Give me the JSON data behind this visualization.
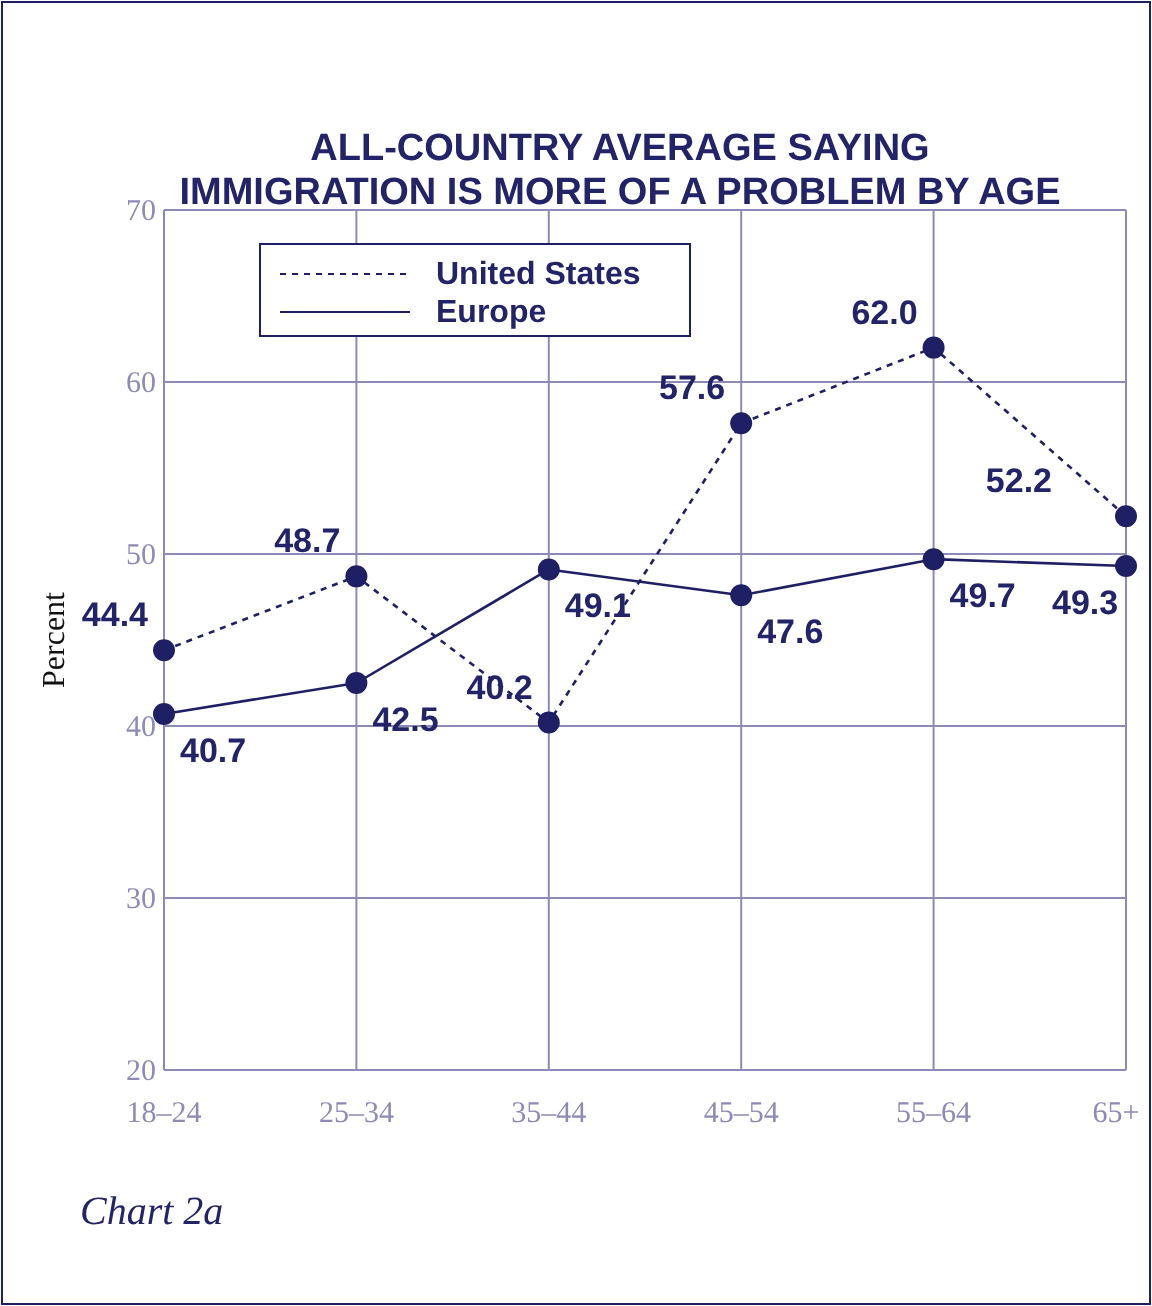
{
  "chart_data": {
    "type": "line",
    "title": "ALL-COUNTRY AVERAGE SAYING\nIMMIGRATION IS MORE OF A PROBLEM BY AGE",
    "ylabel": "Percent",
    "categories": [
      "18–24",
      "25–34",
      "35–44",
      "45–54",
      "55–64",
      "65+"
    ],
    "series": [
      {
        "name": "United States",
        "color": "#1f1f66",
        "line_style": "dashed",
        "values": [
          44.4,
          48.7,
          40.2,
          57.6,
          62.0,
          52.2
        ],
        "value_labels": [
          "44.4",
          "48.7",
          "40.2",
          "57.6",
          "62.0",
          "52.2"
        ]
      },
      {
        "name": "Europe",
        "color": "#1f1f66",
        "line_style": "solid",
        "values": [
          40.7,
          42.5,
          49.1,
          47.6,
          49.7,
          49.3
        ],
        "value_labels": [
          "40.7",
          "42.5",
          "49.1",
          "47.6",
          "49.7",
          "49.3"
        ]
      }
    ],
    "ylim": [
      20,
      70
    ],
    "yticks": [
      20,
      30,
      40,
      50,
      60,
      70
    ],
    "grid": true,
    "legend": "top left",
    "marker": "circle",
    "annotations": [
      "Chart 2a"
    ]
  }
}
